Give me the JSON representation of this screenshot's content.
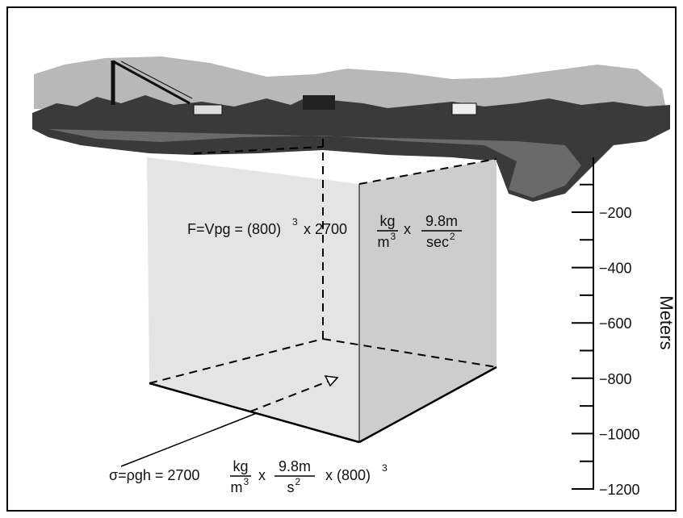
{
  "force_equation": {
    "lhs": "F=Vpg = (800)",
    "exponent": "3",
    "times_1": "x 2700",
    "fraction_1": {
      "numerator": "kg",
      "denominator": "m",
      "denominator_exponent": "3"
    },
    "times_2": "x",
    "fraction_2": {
      "numerator": "9.8m",
      "denominator": "sec",
      "denominator_exponent": "2"
    }
  },
  "stress_equation": {
    "lhs": "σ=ρgh = 2700",
    "fraction_1": {
      "numerator": "kg",
      "denominator": "m",
      "denominator_exponent": "3"
    },
    "times_1": "x",
    "fraction_2": {
      "numerator": "9.8m",
      "denominator": "s",
      "denominator_exponent": "2"
    },
    "times_2": "x (800)",
    "exponent": "3"
  },
  "depth_scale": {
    "label": "Meters",
    "ticks": [
      "−200",
      "−400",
      "−600",
      "−800",
      "−1000",
      "−1200"
    ]
  }
}
